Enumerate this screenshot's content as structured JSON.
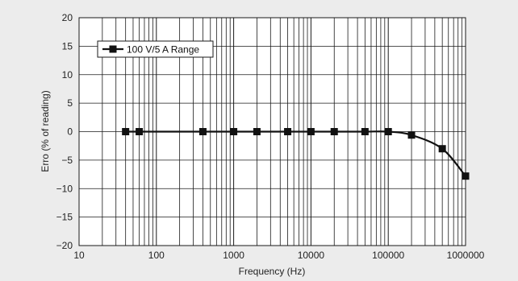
{
  "chart_data": {
    "type": "line",
    "title": "",
    "xlabel": "Frequency (Hz)",
    "ylabel": "Erro (% of reading)",
    "xscale": "log",
    "xlim": [
      10,
      1000000
    ],
    "ylim": [
      -20,
      20
    ],
    "yticks": [
      -20,
      -15,
      -10,
      -5,
      0,
      5,
      10,
      15,
      20
    ],
    "xticks": [
      10,
      100,
      1000,
      10000,
      100000,
      1000000
    ],
    "xtick_labels": [
      "10",
      "100",
      "1000",
      "10000",
      "100000",
      "1000000"
    ],
    "ytick_labels": [
      "−20",
      "−15",
      "−10",
      "−5",
      "0",
      "5",
      "10",
      "15",
      "20"
    ],
    "grid": true,
    "legend_position": "top-left",
    "series": [
      {
        "name": "100 V/5 A Range",
        "color": "#111111",
        "marker": "square",
        "x": [
          40,
          60,
          400,
          1000,
          2000,
          5000,
          10000,
          20000,
          50000,
          100000,
          200000,
          500000,
          1000000
        ],
        "y": [
          0,
          0,
          0,
          0,
          0,
          0,
          0,
          0,
          0,
          0,
          -0.6,
          -3,
          -7.8
        ]
      }
    ]
  },
  "colors": {
    "background": "#ececec",
    "plot_background": "#ffffff",
    "grid": "#1a1a1a",
    "line": "#111111"
  }
}
